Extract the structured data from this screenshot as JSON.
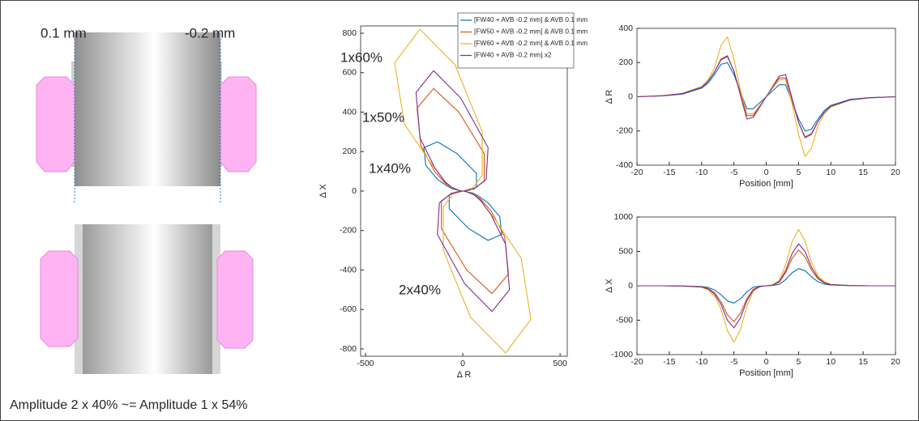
{
  "diagram": {
    "labels": [
      "0.1 mm",
      "-0.2 mm"
    ]
  },
  "caption": "Amplitude 2 x 40% ~= Amplitude 1 x 54%",
  "chart_data": [
    {
      "type": "line",
      "xlabel": "Δ R",
      "ylabel": "Δ X",
      "xlim": [
        -525,
        537
      ],
      "xticks": [
        -500,
        0,
        500
      ],
      "ylim": [
        -837,
        837
      ],
      "yticks": [
        -800,
        -600,
        -400,
        -200,
        0,
        200,
        400,
        600,
        800
      ],
      "legend": "upper right",
      "annotations": [
        {
          "text": "1x60%",
          "color": "#EDB120"
        },
        {
          "text": "1x50%",
          "color": "#44546A"
        },
        {
          "text": "1x40%",
          "color": "#2E75B6"
        },
        {
          "text": "2x40%",
          "color": "#7030A0"
        }
      ],
      "series": [
        {
          "name": "[FW40 + AVB -0.2 mm] & AVB 0.1 mm",
          "color": "#0072BD",
          "x": [
            0,
            5,
            15,
            50,
            80,
            130,
            190,
            200,
            130,
            30,
            -70,
            -70,
            -35,
            0,
            35,
            70,
            70,
            -30,
            -130,
            -200,
            -190,
            -130,
            -80,
            -50,
            -15,
            -5,
            0
          ],
          "values": [
            0,
            0,
            -2,
            -10,
            -25,
            -60,
            -130,
            -220,
            -250,
            -190,
            -90,
            -20,
            -5,
            0,
            5,
            20,
            90,
            190,
            250,
            220,
            130,
            60,
            25,
            10,
            2,
            0,
            0
          ]
        },
        {
          "name": "[FW50 + AVB -0.2 mm] & AVB 0.1 mm",
          "color": "#D95319",
          "x": [
            0,
            6,
            18,
            55,
            90,
            145,
            215,
            235,
            150,
            20,
            -110,
            -110,
            -55,
            0,
            55,
            110,
            110,
            -20,
            -150,
            -235,
            -215,
            -145,
            -90,
            -55,
            -18,
            -6,
            0
          ],
          "values": [
            0,
            0,
            -3,
            -15,
            -40,
            -100,
            -230,
            -420,
            -520,
            -400,
            -190,
            -50,
            -10,
            0,
            10,
            50,
            190,
            400,
            520,
            420,
            230,
            100,
            40,
            15,
            3,
            0,
            0
          ]
        },
        {
          "name": "[FW60 + AVB -0.2 mm] & AVB 0.1 mm",
          "color": "#EDB120",
          "x": [
            0,
            6,
            20,
            60,
            100,
            170,
            300,
            350,
            220,
            40,
            -100,
            -100,
            -50,
            0,
            50,
            100,
            100,
            -40,
            -220,
            -350,
            -300,
            -170,
            -100,
            -60,
            -20,
            -6,
            0
          ],
          "values": [
            0,
            0,
            -4,
            -20,
            -60,
            -150,
            -340,
            -650,
            -820,
            -640,
            -300,
            -80,
            -15,
            0,
            15,
            80,
            300,
            640,
            820,
            650,
            340,
            150,
            60,
            20,
            4,
            0,
            0
          ]
        },
        {
          "name": "[FW40 + AVB -0.2 mm] x2",
          "color": "#7E2F8E",
          "x": [
            0,
            6,
            18,
            55,
            90,
            145,
            220,
            240,
            150,
            10,
            -130,
            -120,
            -60,
            0,
            60,
            120,
            130,
            -10,
            -150,
            -240,
            -220,
            -145,
            -90,
            -55,
            -18,
            -6,
            0
          ],
          "values": [
            0,
            0,
            -3,
            -18,
            -45,
            -120,
            -270,
            -500,
            -610,
            -470,
            -220,
            -60,
            -12,
            0,
            12,
            60,
            220,
            470,
            610,
            500,
            270,
            120,
            45,
            18,
            3,
            0,
            0
          ]
        }
      ]
    },
    {
      "type": "line",
      "xlabel": "Position [mm]",
      "ylabel": "Δ R",
      "x": [
        -20,
        -16,
        -13,
        -10,
        -9,
        -8,
        -7,
        -6,
        -5,
        -4,
        -3,
        -2,
        -1,
        0,
        1,
        2,
        3,
        4,
        5,
        6,
        7,
        8,
        9,
        10,
        13,
        16,
        20
      ],
      "xlim": [
        -20,
        20
      ],
      "xticks": [
        -20,
        -15,
        -10,
        -5,
        0,
        5,
        10,
        15,
        20
      ],
      "ylim": [
        -400,
        400
      ],
      "yticks": [
        -400,
        -200,
        0,
        200,
        400
      ],
      "series": [
        {
          "color": "#0072BD",
          "values": [
            0,
            5,
            15,
            50,
            80,
            130,
            190,
            200,
            130,
            30,
            -70,
            -70,
            -35,
            0,
            35,
            70,
            70,
            -30,
            -130,
            -200,
            -190,
            -130,
            -80,
            -50,
            -15,
            -5,
            0
          ]
        },
        {
          "color": "#D95319",
          "values": [
            0,
            6,
            18,
            55,
            90,
            145,
            215,
            235,
            150,
            20,
            -110,
            -110,
            -55,
            0,
            55,
            110,
            110,
            -20,
            -150,
            -235,
            -215,
            -145,
            -90,
            -55,
            -18,
            -6,
            0
          ]
        },
        {
          "color": "#EDB120",
          "values": [
            0,
            6,
            20,
            60,
            100,
            170,
            300,
            350,
            220,
            40,
            -100,
            -100,
            -50,
            0,
            50,
            100,
            100,
            -40,
            -220,
            -350,
            -300,
            -170,
            -100,
            -60,
            -20,
            -6,
            0
          ]
        },
        {
          "color": "#7E2F8E",
          "values": [
            0,
            6,
            18,
            55,
            90,
            145,
            220,
            240,
            150,
            10,
            -130,
            -120,
            -60,
            0,
            60,
            120,
            130,
            -10,
            -150,
            -240,
            -220,
            -145,
            -90,
            -55,
            -18,
            -6,
            0
          ]
        }
      ]
    },
    {
      "type": "line",
      "xlabel": "Position [mm]",
      "ylabel": "Δ X",
      "x": [
        -20,
        -16,
        -13,
        -10,
        -9,
        -8,
        -7,
        -6,
        -5,
        -4,
        -3,
        -2,
        -1,
        0,
        1,
        2,
        3,
        4,
        5,
        6,
        7,
        8,
        9,
        10,
        13,
        16,
        20
      ],
      "xlim": [
        -20,
        20
      ],
      "xticks": [
        -20,
        -15,
        -10,
        -5,
        0,
        5,
        10,
        15,
        20
      ],
      "ylim": [
        -1000,
        1000
      ],
      "yticks": [
        -1000,
        -500,
        0,
        500,
        1000
      ],
      "series": [
        {
          "color": "#0072BD",
          "values": [
            0,
            0,
            -2,
            -10,
            -25,
            -60,
            -130,
            -220,
            -250,
            -190,
            -90,
            -20,
            -5,
            0,
            5,
            20,
            90,
            190,
            250,
            220,
            130,
            60,
            25,
            10,
            2,
            0,
            0
          ]
        },
        {
          "color": "#D95319",
          "values": [
            0,
            0,
            -3,
            -15,
            -40,
            -100,
            -230,
            -420,
            -520,
            -400,
            -190,
            -50,
            -10,
            0,
            10,
            50,
            190,
            400,
            520,
            420,
            230,
            100,
            40,
            15,
            3,
            0,
            0
          ]
        },
        {
          "color": "#EDB120",
          "values": [
            0,
            0,
            -4,
            -20,
            -60,
            -150,
            -340,
            -650,
            -820,
            -640,
            -300,
            -80,
            -15,
            0,
            15,
            80,
            300,
            640,
            820,
            650,
            340,
            150,
            60,
            20,
            4,
            0,
            0
          ]
        },
        {
          "color": "#7E2F8E",
          "values": [
            0,
            0,
            -3,
            -18,
            -45,
            -120,
            -270,
            -500,
            -610,
            -470,
            -220,
            -60,
            -12,
            0,
            12,
            60,
            220,
            470,
            610,
            500,
            270,
            120,
            45,
            18,
            3,
            0,
            0
          ]
        }
      ]
    }
  ]
}
